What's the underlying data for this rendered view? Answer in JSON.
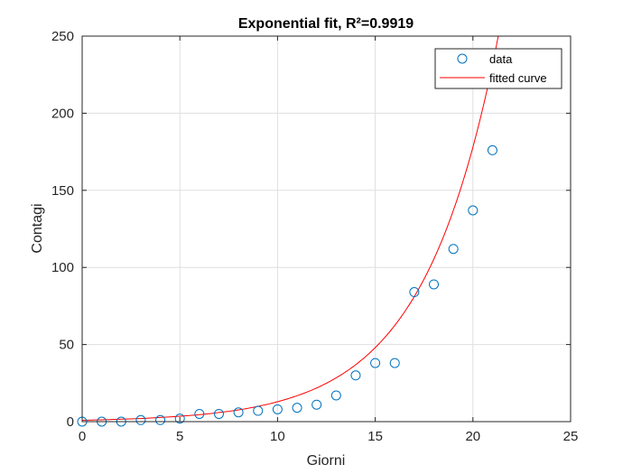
{
  "chart_data": {
    "type": "scatter",
    "title": "Exponential fit, R²=0.9919",
    "xlabel": "Giorni",
    "ylabel": "Contagi",
    "xlim": [
      0,
      25
    ],
    "ylim": [
      0,
      250
    ],
    "xticks": [
      0,
      5,
      10,
      15,
      20,
      25
    ],
    "yticks": [
      0,
      50,
      100,
      150,
      200,
      250
    ],
    "grid": true,
    "legend_position": "top-right",
    "series": [
      {
        "name": "data",
        "kind": "markers",
        "marker": "circle",
        "color": "#0072BD",
        "x": [
          0,
          1,
          2,
          3,
          4,
          5,
          6,
          7,
          8,
          9,
          10,
          11,
          12,
          13,
          14,
          15,
          16,
          17,
          18,
          19,
          20,
          21
        ],
        "y": [
          0,
          0,
          0,
          1,
          1,
          2,
          5,
          5,
          6,
          7,
          8,
          9,
          11,
          17,
          30,
          38,
          38,
          84,
          89,
          112,
          137,
          176
        ]
      },
      {
        "name": "fitted curve",
        "kind": "line",
        "color": "#FF0000",
        "x": [
          0,
          1,
          2,
          3,
          4,
          5,
          6,
          7,
          8,
          9,
          10,
          11,
          12,
          13,
          14,
          15,
          16,
          17,
          18,
          19,
          20,
          21,
          22
        ],
        "y": [
          0.9,
          1.2,
          1.6,
          2.0,
          2.7,
          3.5,
          4.5,
          5.9,
          7.6,
          9.9,
          12.9,
          16.8,
          21.8,
          28.4,
          36.9,
          48.0,
          62.4,
          81.1,
          105.4,
          137.0,
          178.0,
          231.3,
          300.6
        ]
      }
    ]
  }
}
